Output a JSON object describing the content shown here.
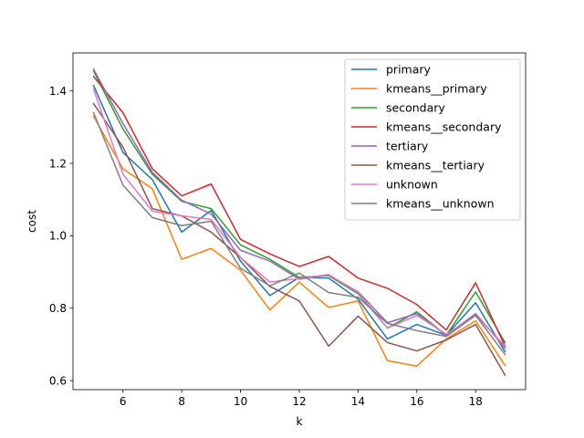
{
  "chart_data": {
    "type": "line",
    "xlabel": "k",
    "ylabel": "cost",
    "xlim": [
      4.3,
      19.7
    ],
    "ylim": [
      0.575,
      1.505
    ],
    "xticks": [
      "6",
      "8",
      "10",
      "12",
      "14",
      "16",
      "18"
    ],
    "yticks": [
      "0.6",
      "0.8",
      "1.0",
      "1.2",
      "1.4"
    ],
    "legend_position": "upper-right",
    "grid": false,
    "x": [
      5,
      6,
      7,
      8,
      9,
      10,
      11,
      12,
      13,
      14,
      15,
      16,
      17,
      18,
      19
    ],
    "series": [
      {
        "name": "primary",
        "color": "#1f77b4",
        "values": [
          1.415,
          1.23,
          1.155,
          1.01,
          1.07,
          0.93,
          0.835,
          0.885,
          0.883,
          0.825,
          0.715,
          0.755,
          0.725,
          0.815,
          0.68
        ]
      },
      {
        "name": "kmeans__primary",
        "color": "#ff7f0e",
        "values": [
          1.33,
          1.185,
          1.13,
          0.935,
          0.965,
          0.905,
          0.795,
          0.872,
          0.802,
          0.82,
          0.655,
          0.64,
          0.715,
          0.765,
          0.642
        ]
      },
      {
        "name": "secondary",
        "color": "#2ca02c",
        "values": [
          1.455,
          1.295,
          1.17,
          1.095,
          1.075,
          0.975,
          0.935,
          0.885,
          0.89,
          0.84,
          0.745,
          0.79,
          0.725,
          0.845,
          0.705
        ]
      },
      {
        "name": "kmeans__secondary",
        "color": "#d62728",
        "values": [
          1.44,
          1.34,
          1.185,
          1.11,
          1.143,
          0.99,
          0.95,
          0.915,
          0.943,
          0.883,
          0.855,
          0.81,
          0.74,
          0.87,
          0.695
        ]
      },
      {
        "name": "tertiary",
        "color": "#9467bd",
        "values": [
          1.46,
          1.31,
          1.175,
          1.098,
          1.06,
          0.96,
          0.93,
          0.88,
          0.892,
          0.845,
          0.76,
          0.785,
          0.725,
          0.785,
          0.69
        ]
      },
      {
        "name": "kmeans__tertiary",
        "color": "#8c564b",
        "values": [
          1.365,
          1.245,
          1.075,
          1.055,
          1.01,
          0.94,
          0.86,
          0.82,
          0.695,
          0.778,
          0.705,
          0.682,
          0.712,
          0.755,
          0.615
        ]
      },
      {
        "name": "unknown",
        "color": "#e377c2",
        "values": [
          1.405,
          1.17,
          1.068,
          1.055,
          1.045,
          0.94,
          0.872,
          0.882,
          0.893,
          0.843,
          0.745,
          0.78,
          0.728,
          0.78,
          0.695
        ]
      },
      {
        "name": "kmeans__unknown",
        "color": "#7f7f7f",
        "values": [
          1.34,
          1.14,
          1.05,
          1.028,
          1.04,
          0.91,
          0.862,
          0.897,
          0.843,
          0.83,
          0.758,
          0.738,
          0.722,
          0.78,
          0.672
        ]
      }
    ]
  }
}
